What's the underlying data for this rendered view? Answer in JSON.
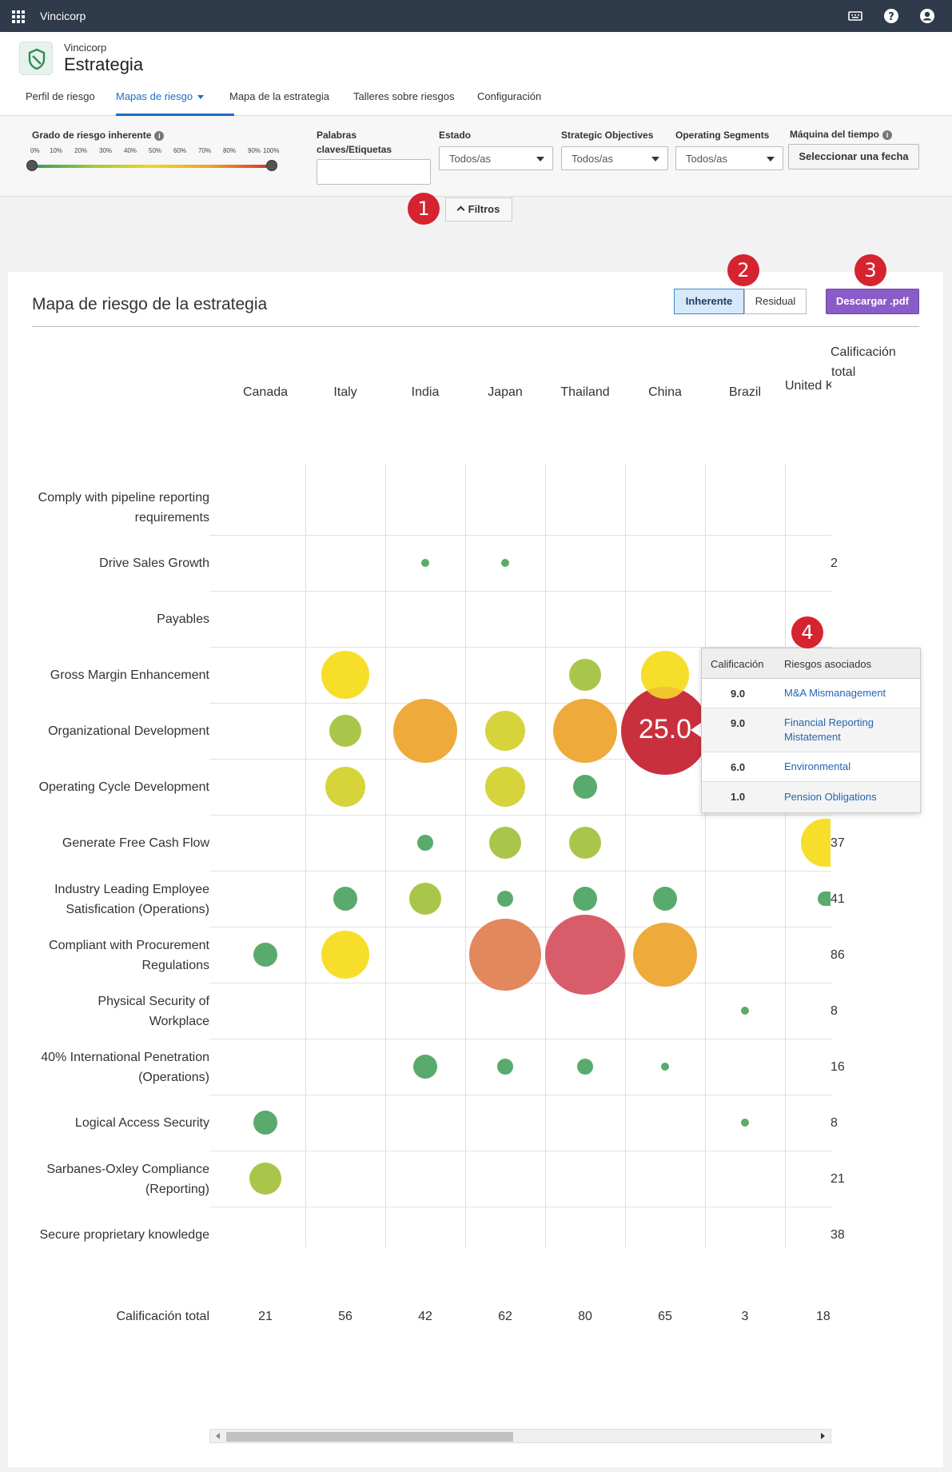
{
  "topbar": {
    "brand": "Vincicorp",
    "icons": [
      "grid-icon",
      "keyboard-icon",
      "help-icon",
      "user-icon"
    ]
  },
  "header": {
    "org": "Vincicorp",
    "title": "Estrategia",
    "tabs": [
      {
        "label": "Perfil de riesgo"
      },
      {
        "label": "Mapas de riesgo"
      },
      {
        "label": "Mapa de la estrategia"
      },
      {
        "label": "Talleres sobre riesgos"
      },
      {
        "label": "Configuración"
      }
    ]
  },
  "filters": {
    "risk_grade_label": "Grado de riesgo inherente",
    "ticks": [
      "0%",
      "10%",
      "20%",
      "30%",
      "40%",
      "50%",
      "60%",
      "70%",
      "80%",
      "90%",
      "100%"
    ],
    "range": [
      0,
      100
    ],
    "keywords_label_1": "Palabras",
    "keywords_label_2": "claves/Etiquetas",
    "estado_label": "Estado",
    "estado_value": "Todos/as",
    "objectives_label": "Strategic Objectives",
    "objectives_value": "Todos/as",
    "segments_label": "Operating Segments",
    "segments_value": "Todos/as",
    "time_machine_label": "Máquina del tiempo",
    "date_button": "Seleccionar una fecha",
    "filters_button": "Filtros"
  },
  "markers": [
    "1",
    "2",
    "3",
    "4"
  ],
  "map": {
    "title": "Mapa de riesgo de la estrategia",
    "toggle_inherent": "Inherente",
    "toggle_residual": "Residual",
    "download": "Descargar .pdf",
    "total_header_1": "Calificación",
    "total_header_2": "total",
    "columns": [
      "Canada",
      "Italy",
      "India",
      "Japan",
      "Thailand",
      "China",
      "Brazil",
      "United Kingdom"
    ],
    "rows": [
      {
        "l1": "Comply with pipeline reporting",
        "l2": "requirements",
        "total": ""
      },
      {
        "l1": "Drive Sales Growth",
        "l2": "",
        "total": "2"
      },
      {
        "l1": "Payables",
        "l2": "",
        "total": ""
      },
      {
        "l1": "Gross Margin Enhancement",
        "l2": "",
        "total": ""
      },
      {
        "l1": "Organizational Development",
        "l2": "",
        "total": ""
      },
      {
        "l1": "Operating Cycle Development",
        "l2": "",
        "total": ""
      },
      {
        "l1": "Generate Free Cash Flow",
        "l2": "",
        "total": "37"
      },
      {
        "l1": "Industry Leading Employee",
        "l2": "Satisfication (Operations)",
        "total": "41"
      },
      {
        "l1": "Compliant with Procurement",
        "l2": "Regulations",
        "total": "86"
      },
      {
        "l1": "Physical Security of",
        "l2": "Workplace",
        "total": "8"
      },
      {
        "l1": "40% International Penetration",
        "l2": "(Operations)",
        "total": "16"
      },
      {
        "l1": "Logical Access Security",
        "l2": "",
        "total": "8"
      },
      {
        "l1": "Sarbanes-Oxley Compliance",
        "l2": "(Reporting)",
        "total": "21"
      },
      {
        "l1": "Secure proprietary knowledge",
        "l2": "",
        "total": "38"
      }
    ],
    "bottom_label": "Calificación total",
    "bottom_totals": [
      "21",
      "56",
      "42",
      "62",
      "80",
      "65",
      "3",
      "18"
    ],
    "highlight_value": "25.0",
    "colors": {
      "green": "#5aaa6e",
      "lightgreen": "#a9c64a",
      "yellowgreen": "#d7d33a",
      "yellow": "#f7de2a",
      "orange": "#eeaa3a",
      "darkorange": "#e07a4a",
      "red": "#d44b5a",
      "darkred": "#c9303e"
    }
  },
  "tooltip": {
    "col_score": "Calificación",
    "col_risks": "Riesgos asociados",
    "rows": [
      {
        "score": "9.0",
        "risk": "M&A Mismanagement"
      },
      {
        "score": "9.0",
        "risk": "Financial Reporting Mistatement"
      },
      {
        "score": "6.0",
        "risk": "Environmental"
      },
      {
        "score": "1.0",
        "risk": "Pension Obligations"
      }
    ]
  }
}
